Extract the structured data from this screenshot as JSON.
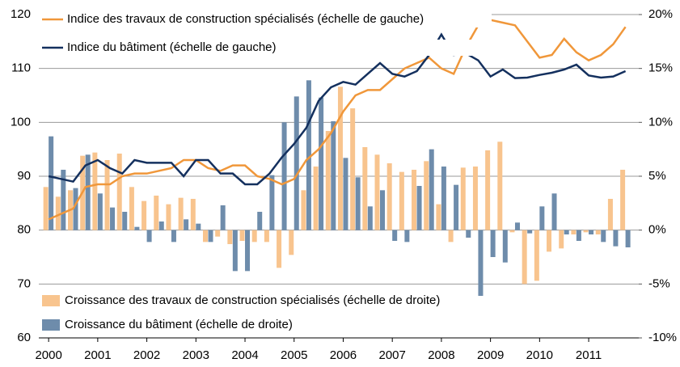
{
  "chart_data": {
    "type": "combo",
    "x": [
      2000,
      2000.25,
      2000.5,
      2000.75,
      2001,
      2001.25,
      2001.5,
      2001.75,
      2002,
      2002.25,
      2002.5,
      2002.75,
      2003,
      2003.25,
      2003.5,
      2003.75,
      2004,
      2004.25,
      2004.5,
      2004.75,
      2005,
      2005.25,
      2005.5,
      2005.75,
      2006,
      2006.25,
      2006.5,
      2006.75,
      2007,
      2007.25,
      2007.5,
      2007.75,
      2008,
      2008.25,
      2008.5,
      2008.75,
      2009,
      2009.25,
      2009.5,
      2009.75,
      2010,
      2010.25,
      2010.5,
      2010.75,
      2011,
      2011.25,
      2011.5,
      2011.75
    ],
    "xlim": [
      1999.8,
      2012.02
    ],
    "xticks": [
      2000,
      2001,
      2002,
      2003,
      2004,
      2005,
      2006,
      2007,
      2008,
      2009,
      2010,
      2011
    ],
    "ylim": [
      60,
      120
    ],
    "yticks": [
      60,
      70,
      80,
      90,
      100,
      110,
      120
    ],
    "y2lim": [
      -10,
      20
    ],
    "y2ticks": [
      {
        "value": -10,
        "label": "-10%"
      },
      {
        "value": -5,
        "label": "-5%"
      },
      {
        "value": 0,
        "label": "0%"
      },
      {
        "value": 5,
        "label": "5%"
      },
      {
        "value": 10,
        "label": "10%"
      },
      {
        "value": 15,
        "label": "15%"
      },
      {
        "value": 20,
        "label": "20%"
      }
    ],
    "grid": true,
    "series": [
      {
        "name": "Croissance des travaux de construction spécialisés (échelle de droite)",
        "type": "bar",
        "axis": "y2",
        "color": "#f8c48e",
        "values": [
          4.0,
          3.1,
          3.7,
          6.9,
          7.2,
          6.5,
          7.1,
          4.0,
          2.7,
          3.2,
          2.4,
          3.0,
          2.9,
          -1.1,
          -0.6,
          -1.3,
          -1.0,
          -1.1,
          -1.1,
          -3.5,
          -2.3,
          3.7,
          5.9,
          9.2,
          13.3,
          11.3,
          7.7,
          7.0,
          6.2,
          5.4,
          5.6,
          6.4,
          2.4,
          -1.1,
          5.8,
          5.9,
          7.4,
          8.2,
          -0.2,
          -5.0,
          -4.7,
          -2.0,
          -1.7,
          -0.4,
          -0.2,
          -0.4,
          2.9,
          5.6
        ]
      },
      {
        "name": "Croissance du bâtiment (échelle de droite)",
        "type": "bar",
        "axis": "y2",
        "color": "#6e8cab",
        "values": [
          8.7,
          5.6,
          3.9,
          7.0,
          3.4,
          2.1,
          1.7,
          0.3,
          -1.1,
          0.8,
          -1.1,
          1.0,
          0.6,
          -1.1,
          2.3,
          -3.8,
          -3.8,
          1.7,
          5.1,
          10.0,
          12.4,
          13.9,
          12.3,
          10.1,
          6.7,
          4.9,
          2.2,
          3.7,
          -1.0,
          -1.1,
          4.1,
          7.5,
          5.9,
          4.2,
          -0.7,
          -6.1,
          -2.5,
          -3.0,
          0.7,
          -0.3,
          2.2,
          3.4,
          -0.4,
          -1.0,
          -0.4,
          -1.1,
          -1.5,
          -1.6
        ]
      },
      {
        "name": "Indice des travaux de construction spécialisés (échelle de gauche)",
        "type": "line",
        "color": "#f0973a",
        "values": [
          82,
          83,
          84,
          88,
          88.5,
          88.5,
          90,
          90.5,
          90.5,
          91,
          91.5,
          93,
          93,
          91.5,
          91,
          92,
          92,
          90,
          89.5,
          88.5,
          89.5,
          93,
          95,
          98,
          102,
          105,
          106,
          106,
          108,
          110,
          111,
          112,
          110,
          109,
          114,
          118,
          119,
          118.5,
          118,
          115,
          112,
          112.5,
          115.5,
          113,
          111.5,
          112.5,
          114.5,
          117.7
        ]
      },
      {
        "name": "Indice du bâtiment (échelle de gauche)",
        "type": "line",
        "color": "#14305e",
        "values": [
          90,
          89.5,
          89,
          92,
          93,
          91.5,
          90.5,
          93,
          92.5,
          92.5,
          92.5,
          90,
          93,
          93,
          90.5,
          90.5,
          88.5,
          88.5,
          90.5,
          93.5,
          96,
          99,
          104,
          106.5,
          107.5,
          107,
          109,
          111,
          109,
          108.5,
          109.5,
          112.5,
          116.3,
          112.5,
          112.8,
          111.5,
          108.5,
          109.8,
          108.2,
          108.3,
          108.8,
          109.2,
          109.8,
          110.7,
          108.7,
          108.3,
          108.5,
          109.5
        ]
      }
    ]
  }
}
